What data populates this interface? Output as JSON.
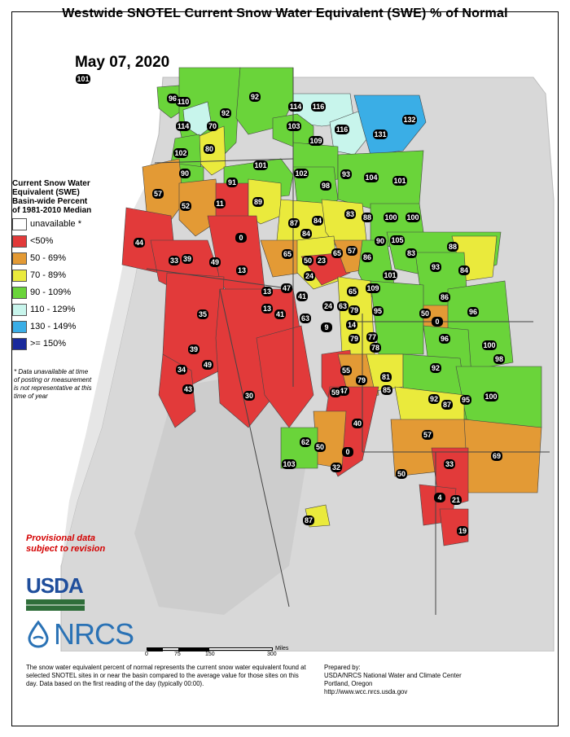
{
  "title": "Westwide SNOTEL Current Snow Water Equivalent (SWE) % of Normal",
  "date": "May 07, 2020",
  "legend": {
    "title_lines": [
      "Current Snow Water",
      "Equivalent (SWE)",
      "Basin-wide Percent",
      "of 1981-2010 Median"
    ],
    "items": [
      {
        "label": "unavailable *",
        "color": "#ffffff"
      },
      {
        "label": "<50%",
        "color": "#e23a3a"
      },
      {
        "label": "50 - 69%",
        "color": "#e39a35"
      },
      {
        "label": "70 - 89%",
        "color": "#eaea3c"
      },
      {
        "label": "90 - 109%",
        "color": "#6ad43a"
      },
      {
        "label": "110 - 129%",
        "color": "#c8f5ec"
      },
      {
        "label": "130 - 149%",
        "color": "#3aaee6"
      },
      {
        "label": ">= 150%",
        "color": "#1a2a9c"
      }
    ]
  },
  "unavailable_note": "* Data unavailable at time of posting or measurement is not representative at this time of year",
  "provisional_lines": [
    "Provisional data",
    "subject to revision"
  ],
  "logos": {
    "usda": "USDA",
    "nrcs": "NRCS"
  },
  "scale": {
    "ticks": [
      "0",
      "75",
      "150",
      "300"
    ],
    "unit": "Miles"
  },
  "footnote": "The snow water equivalent percent of normal represents the current snow water equivalent found at selected SNOTEL sites in or near the basin compared to the average value for those sites on this day. Data based on the first reading of the day (typically 00:00).",
  "prepared_by": [
    "Prepared by:",
    "USDA/NRCS National Water and Climate Center",
    "Portland, Oregon",
    "http://www.wcc.nrcs.usda.gov"
  ],
  "basin_values": [
    "101",
    "92",
    "96",
    "110",
    "92",
    "114",
    "116",
    "70",
    "114",
    "103",
    "109",
    "116",
    "131",
    "132",
    "80",
    "102",
    "101",
    "102",
    "93",
    "104",
    "101",
    "98",
    "90",
    "91",
    "57",
    "52",
    "11",
    "89",
    "87",
    "84",
    "83",
    "88",
    "100",
    "100",
    "44",
    "33",
    "39",
    "49",
    "0",
    "84",
    "90",
    "105",
    "88",
    "65",
    "50",
    "23",
    "65",
    "57",
    "86",
    "83",
    "93",
    "84",
    "13",
    "24",
    "101",
    "47",
    "13",
    "41",
    "65",
    "109",
    "86",
    "35",
    "41",
    "24",
    "63",
    "79",
    "95",
    "50",
    "96",
    "13",
    "63",
    "14",
    "9",
    "0",
    "79",
    "77",
    "78",
    "96",
    "100",
    "39",
    "49",
    "34",
    "55",
    "79",
    "81",
    "92",
    "98",
    "43",
    "47",
    "59",
    "85",
    "92",
    "95",
    "30",
    "100",
    "87",
    "40",
    "62",
    "50",
    "0",
    "57",
    "103",
    "50",
    "32",
    "33",
    "69",
    "4",
    "21",
    "19",
    "87"
  ]
}
